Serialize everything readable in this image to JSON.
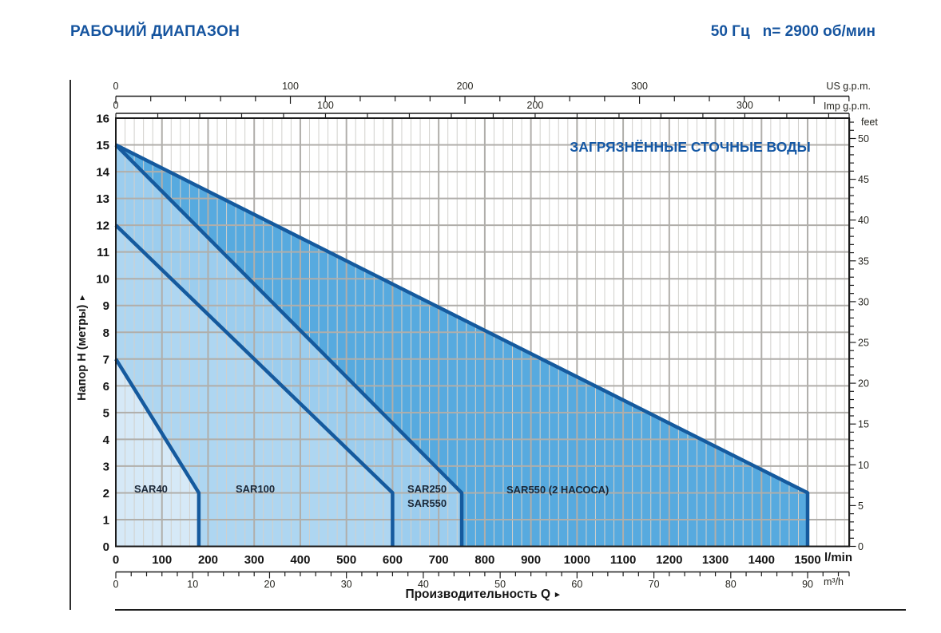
{
  "header": {
    "title": "РАБОЧИЙ ДИАПАЗОН",
    "frequency": "50 Гц",
    "speed": "n= 2900 об/мин"
  },
  "chart_data": {
    "type": "area",
    "title": "РАБОЧИЙ ДИАПАЗОН",
    "annotation": "ЗАГРЯЗНЁННЫЕ СТОЧНЫЕ ВОДЫ",
    "xlabel": "Производительность Q",
    "xlabel_arrow": "▸",
    "ylabel": "Напор H (метры)",
    "ylabel_arrow": "▸",
    "x_axes": {
      "lmin": {
        "unit": "l/min",
        "min": 0,
        "max": 1590,
        "minor_step": 20,
        "major_step": 100,
        "labels": [
          0,
          100,
          200,
          300,
          400,
          500,
          600,
          700,
          800,
          900,
          1000,
          1100,
          1200,
          1300,
          1400,
          1500
        ]
      },
      "m3h": {
        "unit": "m³/h",
        "lmin_per_unit": 16.6667,
        "minor_step": 2,
        "labels": [
          0,
          10,
          20,
          30,
          40,
          50,
          60,
          70,
          80,
          90
        ]
      },
      "usgpm": {
        "unit": "US g.p.m.",
        "lmin_per_unit": 3.785,
        "minor_step": 20,
        "labels": [
          0,
          100,
          200,
          300
        ]
      },
      "impgpm": {
        "unit": "Imp g.p.m.",
        "lmin_per_unit": 4.546,
        "minor_step": 20,
        "labels": [
          0,
          100,
          200,
          300
        ]
      }
    },
    "y_axes": {
      "meters": {
        "unit": "метры",
        "min": 0,
        "max": 16,
        "step": 1,
        "labels": [
          0,
          1,
          2,
          3,
          4,
          5,
          6,
          7,
          8,
          9,
          10,
          11,
          12,
          13,
          14,
          15,
          16
        ]
      },
      "feet": {
        "unit": "feet",
        "meters_per_unit": 0.3048,
        "minor_step": 1,
        "label_step": 5,
        "labels": [
          0,
          5,
          10,
          15,
          20,
          25,
          30,
          35,
          40,
          45,
          50
        ]
      }
    },
    "series": [
      {
        "name": "SAR550 (2 НАСОСА)",
        "fill": "#57aadf",
        "boundary_points_lmin_m": [
          [
            0,
            15
          ],
          [
            1500,
            2
          ],
          [
            1500,
            0
          ]
        ]
      },
      {
        "name": "SAR250 / SAR550",
        "fill": "#9ccdee",
        "boundary_points_lmin_m": [
          [
            0,
            15
          ],
          [
            750,
            2
          ],
          [
            750,
            0
          ]
        ]
      },
      {
        "name": "SAR100",
        "fill": "#aed6f1",
        "boundary_points_lmin_m": [
          [
            0,
            12
          ],
          [
            600,
            2
          ],
          [
            600,
            0
          ]
        ]
      },
      {
        "name": "SAR40",
        "fill": "#d6e9f7",
        "boundary_points_lmin_m": [
          [
            0,
            7
          ],
          [
            180,
            2
          ],
          [
            180,
            0
          ]
        ]
      }
    ],
    "region_labels": [
      {
        "text": "SAR40",
        "x_lmin": 40,
        "y_m": 2.1
      },
      {
        "text": "SAR100",
        "x_lmin": 260,
        "y_m": 2.1
      },
      {
        "text": "SAR250",
        "x_lmin": 633,
        "y_m": 2.15
      },
      {
        "text": "SAR550",
        "x_lmin": 633,
        "y_m": 1.6
      },
      {
        "text": "SAR550 (2 НАСОСА)",
        "x_lmin": 848,
        "y_m": 2.1
      }
    ],
    "colors": {
      "boundary_line": "#155a9e",
      "grid_minor": "#d1d0cc",
      "grid_major": "#b0aeaa",
      "plot_border": "#1c1c1c",
      "accent_blue": "#15549f",
      "tick_text": "#26251f"
    }
  }
}
